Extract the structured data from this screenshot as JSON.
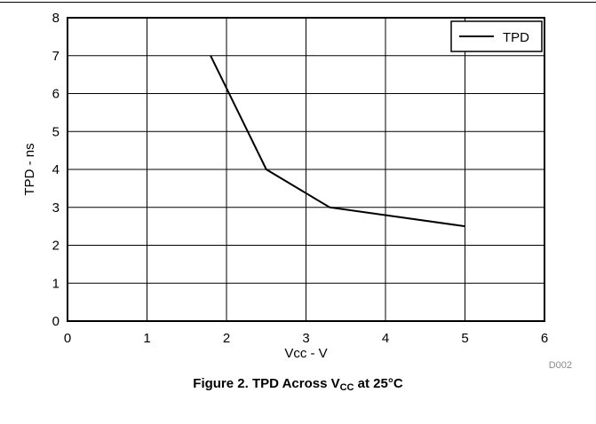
{
  "chart_data": {
    "type": "line",
    "xlabel": "Vcc - V",
    "ylabel": "TPD - ns",
    "xlim": [
      0,
      6
    ],
    "ylim": [
      0,
      8
    ],
    "x_ticks": [
      0,
      1,
      2,
      3,
      4,
      5,
      6
    ],
    "y_ticks": [
      0,
      1,
      2,
      3,
      4,
      5,
      6,
      7,
      8
    ],
    "grid": true,
    "legend_position": "top-right",
    "series": [
      {
        "name": "TPD",
        "color": "#000000",
        "x": [
          1.8,
          2.5,
          3.3,
          5.0
        ],
        "y": [
          7.0,
          4.0,
          3.0,
          2.5
        ]
      }
    ],
    "figure_code": "D002"
  },
  "caption": {
    "prefix": "Figure 2. TPD Across V",
    "subscript": "CC",
    "suffix": " at 25°C"
  }
}
